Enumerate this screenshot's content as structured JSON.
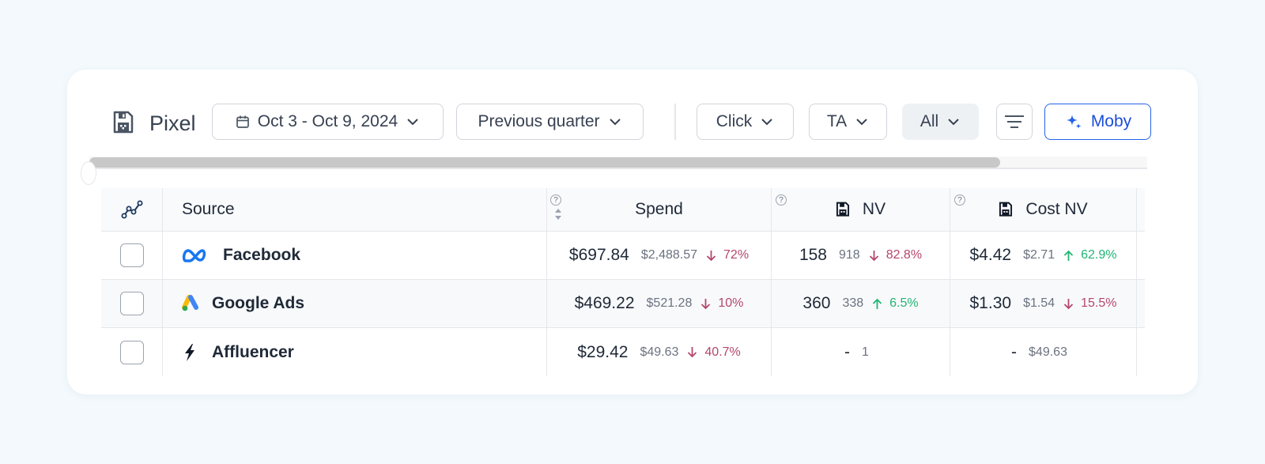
{
  "toolbar": {
    "title": "Pixel",
    "date_range": "Oct 3 - Oct 9, 2024",
    "compare": "Previous quarter",
    "attribution": "Click",
    "model": "TA",
    "filter": "All",
    "moby_label": "Moby"
  },
  "table": {
    "headers": {
      "source": "Source",
      "spend": "Spend",
      "nv": "NV",
      "cost_nv": "Cost NV"
    },
    "help_glyph": "?",
    "rows": [
      {
        "source": "Facebook",
        "icon": "meta-icon",
        "spend": {
          "value": "$697.84",
          "prev": "$2,488.57",
          "change": "72%",
          "dir": "down"
        },
        "nv": {
          "value": "158",
          "prev": "918",
          "change": "82.8%",
          "dir": "down"
        },
        "cost_nv": {
          "value": "$4.42",
          "prev": "$2.71",
          "change": "62.9%",
          "dir": "up"
        }
      },
      {
        "source": "Google Ads",
        "icon": "google-ads-icon",
        "spend": {
          "value": "$469.22",
          "prev": "$521.28",
          "change": "10%",
          "dir": "down"
        },
        "nv": {
          "value": "360",
          "prev": "338",
          "change": "6.5%",
          "dir": "up"
        },
        "cost_nv": {
          "value": "$1.30",
          "prev": "$1.54",
          "change": "15.5%",
          "dir": "down"
        }
      },
      {
        "source": "Affluencer",
        "icon": "lightning-icon",
        "spend": {
          "value": "$29.42",
          "prev": "$49.63",
          "change": "40.7%",
          "dir": "down"
        },
        "nv": {
          "value": "-",
          "prev": "1",
          "change": "",
          "dir": ""
        },
        "cost_nv": {
          "value": "-",
          "prev": "$49.63",
          "change": "",
          "dir": ""
        }
      }
    ]
  },
  "colors": {
    "accent": "#2563eb",
    "down": "#b4476a",
    "up": "#22b573",
    "background": "#f3f9fc"
  }
}
